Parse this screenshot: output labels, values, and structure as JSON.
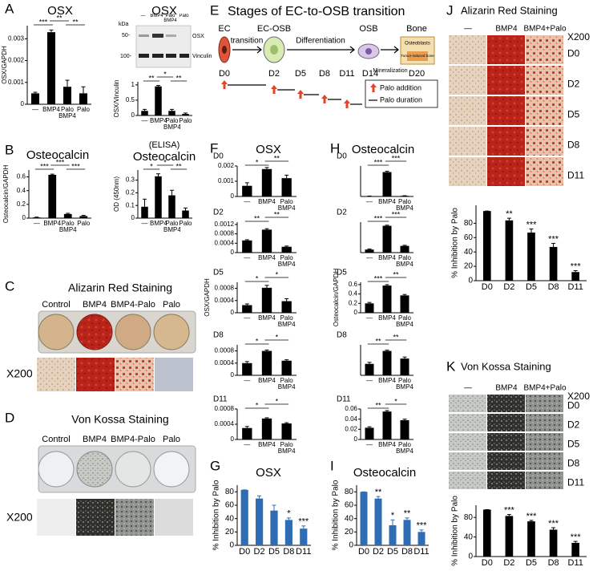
{
  "chart_data": [
    {
      "type": "bar",
      "title": "OSX",
      "ylabel": "OSX/GAPDH",
      "categories": [
        "—",
        "BMP4",
        "Palo BMP4",
        "Palo"
      ],
      "values": [
        0.0005,
        0.0033,
        0.0008,
        0.0005
      ],
      "errors": [
        5e-05,
        0.0001,
        0.0003,
        0.0003
      ],
      "annotations": [
        "***",
        "**",
        "**"
      ],
      "color": "#000000",
      "ylim": [
        0,
        0.0036
      ],
      "yticks": [
        0,
        0.001,
        0.002,
        0.003
      ]
    },
    {
      "type": "bar",
      "title": "OSX",
      "ylabel": "OSX/Vinculin",
      "categories": [
        "—",
        "BMP4",
        "Palo BMP4",
        "Palo"
      ],
      "values": [
        0.15,
        0.95,
        0.15,
        0.05
      ],
      "errors": [
        0.05,
        0.03,
        0.05,
        0.03
      ],
      "annotations": [
        "**",
        "*",
        "**"
      ],
      "color": "#000000",
      "ylim": [
        0,
        1.1
      ],
      "yticks": [
        0,
        0.5,
        1
      ]
    },
    {
      "type": "bar",
      "title": "Osteocalcin",
      "ylabel": "Osteocalcin/GAPDH",
      "categories": [
        "—",
        "BMP4",
        "Palo BMP4",
        "Palo"
      ],
      "values": [
        0.01,
        0.63,
        0.06,
        0.03
      ],
      "errors": [
        0.005,
        0.01,
        0.01,
        0.01
      ],
      "annotations": [
        "***",
        "***",
        "***"
      ],
      "color": "#000000",
      "ylim": [
        0,
        0.7
      ],
      "yticks": [
        0,
        0.2,
        0.4,
        0.6
      ]
    },
    {
      "type": "bar",
      "subtitle": "(ELISA)",
      "title": "Osteocalcin",
      "ylabel": "OD (450nm)",
      "categories": [
        "—",
        "BMP4",
        "Palo BMP4",
        "Palo"
      ],
      "values": [
        0.09,
        0.33,
        0.18,
        0.06
      ],
      "errors": [
        0.06,
        0.02,
        0.04,
        0.02
      ],
      "annotations": [
        "*",
        "*",
        "**"
      ],
      "color": "#000000",
      "ylim": [
        0,
        0.38
      ],
      "yticks": [
        0,
        0.1,
        0.2,
        0.3
      ]
    },
    {
      "type": "bar",
      "title": "D0",
      "categories": [
        "—",
        "BMP4",
        "Palo BMP4"
      ],
      "values": [
        0.0007,
        0.0018,
        0.0012
      ],
      "errors": [
        0.0002,
        0.0001,
        0.0002
      ],
      "annotations": [
        "*",
        "**"
      ],
      "color": "#000000",
      "ylim": [
        0,
        0.002
      ],
      "yticks": [
        0,
        0.001,
        0.002
      ]
    },
    {
      "type": "bar",
      "title": "D2",
      "categories": [
        "—",
        "BMP4",
        "Palo BMP4"
      ],
      "values": [
        0.00052,
        0.00098,
        0.00025
      ],
      "errors": [
        3e-05,
        4e-05,
        3e-05
      ],
      "annotations": [
        "**",
        "**"
      ],
      "color": "#000000",
      "ylim": [
        0,
        0.0013
      ],
      "yticks": [
        0,
        0.0004,
        0.0008,
        0.0012
      ]
    },
    {
      "type": "bar",
      "title": "D5",
      "ylabel": "OSX/GAPDH",
      "categories": [
        "—",
        "BMP4",
        "Palo BMP4"
      ],
      "values": [
        0.00025,
        0.00082,
        0.00038
      ],
      "errors": [
        4e-05,
        8e-05,
        8e-05
      ],
      "annotations": [
        "*",
        "*"
      ],
      "color": "#000000",
      "ylim": [
        0,
        0.001
      ],
      "yticks": [
        0,
        0.0004,
        0.0008
      ]
    },
    {
      "type": "bar",
      "title": "D8",
      "categories": [
        "—",
        "BMP4",
        "Palo BMP4"
      ],
      "values": [
        0.0004,
        0.0008,
        0.00048
      ],
      "errors": [
        5e-05,
        3e-05,
        3e-05
      ],
      "annotations": [
        "*",
        "*"
      ],
      "color": "#000000",
      "ylim": [
        0,
        0.001
      ],
      "yticks": [
        0,
        0.0004,
        0.0008
      ]
    },
    {
      "type": "bar",
      "title": "D11",
      "categories": [
        "—",
        "BMP4",
        "Palo BMP4"
      ],
      "values": [
        0.0003,
        0.00055,
        0.00042
      ],
      "errors": [
        4e-05,
        2e-05,
        2e-05
      ],
      "annotations": [
        "*",
        "*"
      ],
      "color": "#000000",
      "ylim": [
        0,
        0.0008
      ],
      "yticks": [
        0,
        0.0004,
        0.0008
      ]
    },
    {
      "type": "bar",
      "title": "D0",
      "categories": [
        "—",
        "BMP4",
        "Palo BMP4"
      ],
      "values": [
        0.01,
        0.8,
        0.02
      ],
      "errors": [
        0.005,
        0.03,
        0.005
      ],
      "annotations": [
        "***",
        "***"
      ],
      "color": "#000000",
      "ylim": [
        0,
        1
      ]
    },
    {
      "type": "bar",
      "title": "D2",
      "categories": [
        "—",
        "BMP4",
        "Palo BMP4"
      ],
      "values": [
        0.1,
        0.88,
        0.22
      ],
      "errors": [
        0.02,
        0.02,
        0.02
      ],
      "annotations": [
        "***",
        "***"
      ],
      "color": "#000000",
      "ylim": [
        0,
        1
      ]
    },
    {
      "type": "bar",
      "title": "D5",
      "ylabel": "Osteocalcin/GAPDH",
      "categories": [
        "—",
        "BMP4",
        "Palo BMP4"
      ],
      "values": [
        0.2,
        0.58,
        0.37
      ],
      "errors": [
        0.02,
        0.02,
        0.02
      ],
      "annotations": [
        "***",
        "**"
      ],
      "color": "#000000",
      "ylim": [
        0,
        0.65
      ],
      "yticks": [
        0,
        0.2,
        0.4,
        0.6
      ]
    },
    {
      "type": "bar",
      "title": "D8",
      "categories": [
        "—",
        "BMP4",
        "Palo BMP4"
      ],
      "values": [
        0.15,
        0.32,
        0.22
      ],
      "errors": [
        0.02,
        0.01,
        0.02
      ],
      "annotations": [
        "**",
        "**"
      ],
      "color": "#000000",
      "ylim": [
        0,
        0.4
      ]
    },
    {
      "type": "bar",
      "title": "D11",
      "categories": [
        "—",
        "BMP4",
        "Palo BMP4"
      ],
      "values": [
        0.023,
        0.055,
        0.038
      ],
      "errors": [
        0.002,
        0.002,
        0.002
      ],
      "annotations": [
        "**",
        "*"
      ],
      "color": "#000000",
      "ylim": [
        0,
        0.06
      ],
      "yticks": [
        0,
        0.02,
        0.04,
        0.06
      ]
    },
    {
      "type": "bar",
      "title": "OSX",
      "ylabel": "% Inhibition by Palo",
      "categories": [
        "D0",
        "D2",
        "D5",
        "D8",
        "D11"
      ],
      "values": [
        83,
        70,
        52,
        38,
        25
      ],
      "errors": [
        0,
        4,
        8,
        3,
        4
      ],
      "significance": [
        null,
        null,
        null,
        "*",
        "***"
      ],
      "color": "#2e6db4",
      "ylim": [
        0,
        90
      ],
      "yticks": [
        0,
        20,
        40,
        60,
        80
      ]
    },
    {
      "type": "bar",
      "title": "Osteocalcin",
      "ylabel": "% Inhibition by Palo",
      "categories": [
        "D0",
        "D2",
        "D5",
        "D8",
        "D11"
      ],
      "values": [
        80,
        70,
        30,
        38,
        20
      ],
      "errors": [
        0,
        3,
        8,
        3,
        3
      ],
      "significance": [
        null,
        "**",
        "*",
        "**",
        "***"
      ],
      "color": "#2e6db4",
      "ylim": [
        0,
        90
      ],
      "yticks": [
        0,
        20,
        40,
        60,
        80
      ]
    },
    {
      "type": "bar",
      "ylabel": "% Inhibition by Palo",
      "categories": [
        "D0",
        "D2",
        "D5",
        "D8",
        "D11"
      ],
      "values": [
        97,
        84,
        67,
        47,
        12
      ],
      "errors": [
        0,
        3,
        5,
        5,
        2
      ],
      "significance": [
        null,
        "**",
        "***",
        "***",
        "***"
      ],
      "color": "#000000",
      "ylim": [
        0,
        105
      ],
      "yticks": [
        0,
        20,
        40,
        60,
        80
      ]
    },
    {
      "type": "bar",
      "ylabel": "% Inhibition by Palo",
      "categories": [
        "D0",
        "D2",
        "D5",
        "D8",
        "D11"
      ],
      "values": [
        96,
        83,
        72,
        55,
        28
      ],
      "errors": [
        0,
        3,
        2,
        4,
        3
      ],
      "significance": [
        null,
        "***",
        "***",
        "***",
        "***"
      ],
      "color": "#000000",
      "ylim": [
        0,
        105
      ],
      "yticks": [
        0,
        40,
        80
      ]
    }
  ],
  "figure": {
    "panel_letters": [
      "A",
      "B",
      "C",
      "D",
      "E",
      "F",
      "G",
      "H",
      "I",
      "J",
      "K"
    ],
    "headings": {
      "osx": "OSX",
      "osteocalcin": "Osteocalcin"
    },
    "blot": {
      "kda": "kDa",
      "markers": [
        "50-",
        "100-"
      ],
      "bands": [
        "OSX",
        "Vinculin"
      ],
      "lanes": [
        "—",
        "BMP4",
        "Palo BMP4",
        "Palo"
      ]
    },
    "stages": {
      "title": "Stages of EC-to-OSB transition",
      "cells": [
        "EC",
        "EC-OSB",
        "OSB",
        "Bone"
      ],
      "steps": [
        "transition",
        "Differentiation",
        "Mineralization"
      ],
      "cell_note": "Osteoblasts",
      "bone_note": "Tumor-induced bone",
      "days": [
        "D0",
        "D2",
        "D5",
        "D8",
        "D11",
        "D14",
        "D20"
      ],
      "legend": [
        "Palo addition",
        "Palo duration"
      ]
    },
    "alizarin_plate": {
      "title": "Alizarin Red Staining",
      "columns": [
        "Control",
        "BMP4",
        "BMP4-Palo",
        "Palo"
      ],
      "magnification": "X200"
    },
    "von_kossa_plate": {
      "title": "Von Kossa Staining",
      "columns": [
        "Control",
        "BMP4",
        "BMP4-Palo",
        "Palo"
      ],
      "magnification": "X200"
    },
    "alizarin_days": {
      "title": "Alizarin Red Staining",
      "columns": [
        "—",
        "BMP4",
        "BMP4+Palo"
      ],
      "magnification": "X200",
      "rows": [
        "D0",
        "D2",
        "D5",
        "D8",
        "D11"
      ]
    },
    "von_kossa_days": {
      "title": "Von Kossa Staining",
      "columns": [
        "—",
        "BMP4",
        "BMP4+Palo"
      ],
      "magnification": "X200",
      "rows": [
        "D0",
        "D2",
        "D5",
        "D8",
        "D11"
      ]
    }
  }
}
